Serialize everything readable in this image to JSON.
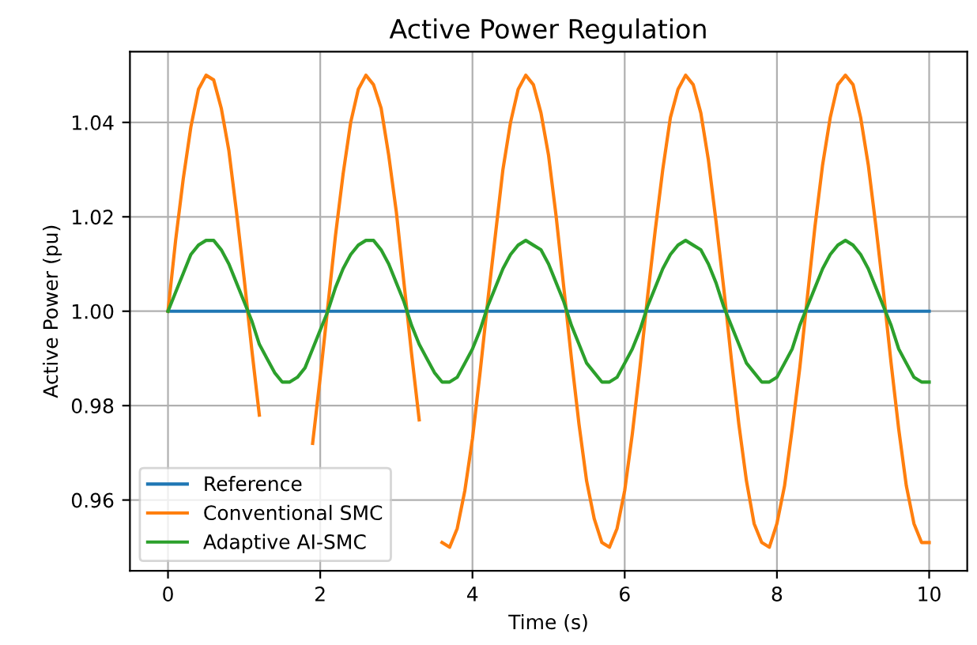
{
  "chart_data": {
    "type": "line",
    "title": "Active Power Regulation",
    "xlabel": "Time (s)",
    "ylabel": "Active Power (pu)",
    "xlim": [
      -0.5,
      10.5
    ],
    "ylim": [
      0.945,
      1.055
    ],
    "xticks": [
      0,
      2,
      4,
      6,
      8,
      10
    ],
    "yticks": [
      {
        "value": 0.96,
        "label": "0.96"
      },
      {
        "value": 0.98,
        "label": "0.98"
      },
      {
        "value": 1.0,
        "label": "1.00"
      },
      {
        "value": 1.02,
        "label": "1.02"
      },
      {
        "value": 1.04,
        "label": "1.04"
      }
    ],
    "x": [
      0,
      0.1,
      0.2,
      0.3,
      0.4,
      0.5,
      0.6,
      0.7,
      0.8,
      0.9,
      1.0,
      1.1,
      1.2,
      1.3,
      1.4,
      1.5,
      1.6,
      1.7,
      1.8,
      1.9,
      2.0,
      2.1,
      2.2,
      2.3,
      2.4,
      2.5,
      2.6,
      2.7,
      2.8,
      2.9,
      3.0,
      3.1,
      3.2,
      3.3,
      3.4,
      3.5,
      3.6,
      3.7,
      3.8,
      3.9,
      4.0,
      4.1,
      4.2,
      4.3,
      4.4,
      4.5,
      4.6,
      4.7,
      4.8,
      4.9,
      5.0,
      5.1,
      5.2,
      5.3,
      5.4,
      5.5,
      5.6,
      5.7,
      5.8,
      5.9,
      6.0,
      6.1,
      6.2,
      6.3,
      6.4,
      6.5,
      6.6,
      6.7,
      6.8,
      6.9,
      7.0,
      7.1,
      7.2,
      7.3,
      7.4,
      7.5,
      7.6,
      7.7,
      7.8,
      7.9,
      8.0,
      8.1,
      8.2,
      8.3,
      8.4,
      8.5,
      8.6,
      8.7,
      8.8,
      8.9,
      9.0,
      9.1,
      9.2,
      9.3,
      9.4,
      9.5,
      9.6,
      9.7,
      9.8,
      9.9,
      10.0
    ],
    "series": [
      {
        "name": "Reference",
        "color": "#1f77b4",
        "x": [
          0,
          10
        ],
        "values": [
          1.0,
          1.0
        ]
      },
      {
        "name": "Conventional SMC",
        "color": "#ff7f0e",
        "values": [
          1.0,
          1.015,
          1.028,
          1.039,
          1.047,
          1.05,
          1.049,
          1.043,
          1.034,
          1.021,
          1.007,
          0.992,
          0.978,
          null,
          null,
          null,
          null,
          null,
          null,
          0.972,
          0.986,
          1.001,
          1.016,
          1.029,
          1.04,
          1.047,
          1.05,
          1.048,
          1.043,
          1.033,
          1.021,
          1.006,
          0.991,
          0.977,
          null,
          null,
          0.951,
          0.95,
          0.954,
          0.962,
          0.973,
          0.987,
          1.002,
          1.016,
          1.03,
          1.04,
          1.047,
          1.05,
          1.048,
          1.042,
          1.033,
          1.02,
          1.005,
          0.99,
          0.976,
          0.964,
          0.956,
          0.951,
          0.95,
          0.954,
          0.962,
          0.974,
          0.988,
          1.003,
          1.017,
          1.03,
          1.041,
          1.047,
          1.05,
          1.048,
          1.042,
          1.032,
          1.019,
          1.005,
          0.99,
          0.976,
          0.964,
          0.955,
          0.951,
          0.95,
          0.955,
          0.963,
          0.975,
          0.988,
          1.003,
          1.018,
          1.031,
          1.041,
          1.048,
          1.05,
          1.048,
          1.041,
          1.031,
          1.018,
          1.004,
          0.989,
          0.975,
          0.963,
          0.955,
          0.951,
          0.951
        ]
      },
      {
        "name": "Adaptive AI-SMC",
        "color": "#2ca02c",
        "values": [
          1.0,
          1.004,
          1.008,
          1.012,
          1.014,
          1.015,
          1.015,
          1.013,
          1.01,
          1.006,
          1.002,
          0.998,
          0.993,
          0.99,
          0.987,
          0.985,
          0.985,
          0.986,
          0.988,
          0.992,
          0.996,
          1.0,
          1.005,
          1.009,
          1.012,
          1.014,
          1.015,
          1.015,
          1.013,
          1.01,
          1.006,
          1.002,
          0.997,
          0.993,
          0.99,
          0.987,
          0.985,
          0.985,
          0.986,
          0.989,
          0.992,
          0.996,
          1.001,
          1.005,
          1.009,
          1.012,
          1.014,
          1.015,
          1.014,
          1.013,
          1.01,
          1.006,
          1.002,
          0.997,
          0.993,
          0.989,
          0.987,
          0.985,
          0.985,
          0.986,
          0.989,
          0.992,
          0.996,
          1.001,
          1.005,
          1.009,
          1.012,
          1.014,
          1.015,
          1.014,
          1.013,
          1.01,
          1.006,
          1.001,
          0.997,
          0.993,
          0.989,
          0.987,
          0.985,
          0.985,
          0.986,
          0.989,
          0.992,
          0.997,
          1.001,
          1.005,
          1.009,
          1.012,
          1.014,
          1.015,
          1.014,
          1.012,
          1.009,
          1.005,
          1.001,
          0.997,
          0.992,
          0.989,
          0.986,
          0.985,
          0.985
        ]
      }
    ],
    "grid": true,
    "legend": "bottom left",
    "marker": "none",
    "line_style": "solid"
  }
}
